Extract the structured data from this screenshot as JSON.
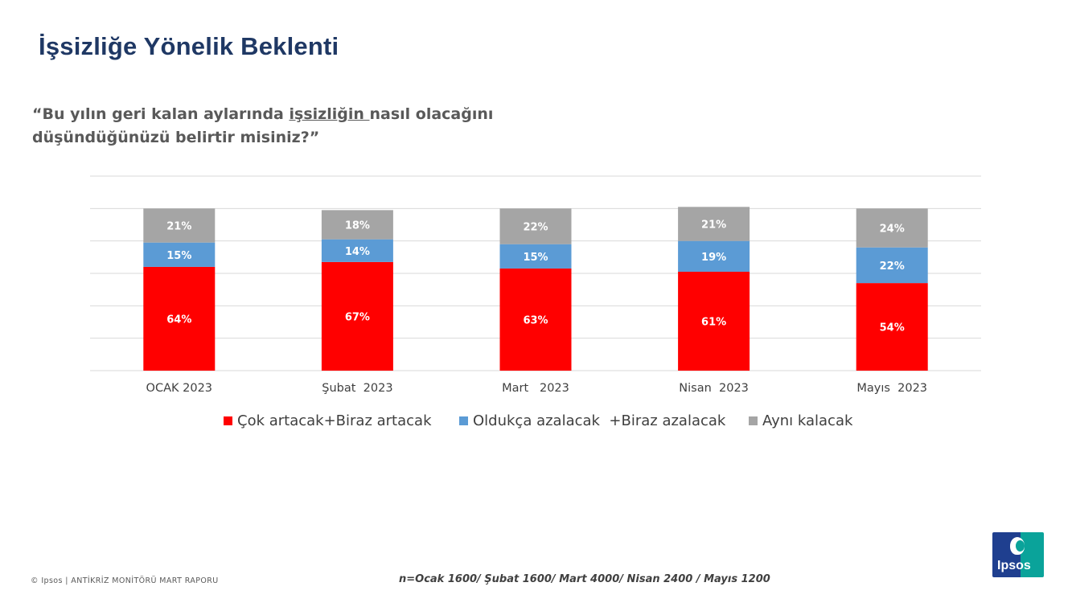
{
  "page": {
    "title": "İşsizliğe Yönelik Beklenti",
    "question_part1": "“Bu yılın geri kalan aylarında ",
    "question_underlined": "işsizliğin ",
    "question_part2": "nasıl olacağını düşündüğünüzü belirtir misiniz?”",
    "footer_left": "© Ipsos | ANTİKRİZ MONİTÖRÜ MART RAPORU",
    "footer_note": "n=Ocak 1600/ Şubat 1600/ Mart 4000/ Nisan 2400 / Mayıs 1200",
    "logo_text": "Ipsos"
  },
  "chart_data": {
    "type": "bar",
    "stacked": true,
    "categories": [
      "OCAK 2023",
      "Şubat  2023",
      "Mart   2023",
      "Nisan  2023",
      "Mayıs  2023"
    ],
    "series": [
      {
        "name": "Çok artacak+Biraz artacak",
        "color": "#ff0000",
        "label_color": "#ffffff",
        "values": [
          64,
          67,
          63,
          61,
          54
        ]
      },
      {
        "name": "Oldukça azalacak  +Biraz azalacak",
        "color": "#5b9bd5",
        "label_color": "#ffffff",
        "values": [
          15,
          14,
          15,
          19,
          22
        ]
      },
      {
        "name": "Aynı kalacak",
        "color": "#a5a5a5",
        "label_color": "#ffffff",
        "values": [
          21,
          18,
          22,
          21,
          24
        ]
      }
    ],
    "value_suffix": "%",
    "ylim": [
      0,
      120
    ],
    "grid": true,
    "legend_position": "bottom"
  }
}
